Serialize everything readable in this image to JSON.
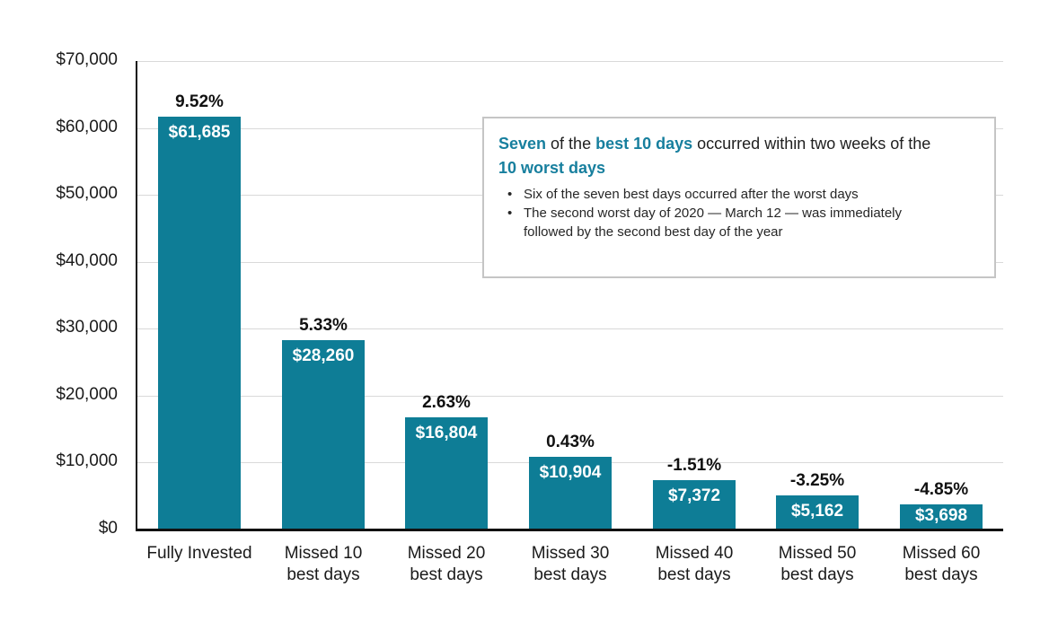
{
  "colors": {
    "bar": "#0e7d96",
    "accent_text": "#177f9e",
    "axis_text": "#1a1a1a",
    "value_label_text": "#ffffff",
    "gridline": "#d9d9d9",
    "axis_line": "#111111",
    "box_border": "#c5c5c5",
    "box_background": "#ffffff"
  },
  "chart_data": {
    "type": "bar",
    "title": "",
    "xlabel": "",
    "ylabel": "",
    "categories": [
      "Fully Invested",
      "Missed 10\nbest days",
      "Missed 20\nbest days",
      "Missed 30\nbest days",
      "Missed 40\nbest days",
      "Missed 50\nbest days",
      "Missed 60\nbest days"
    ],
    "values": [
      61685,
      28260,
      16804,
      10904,
      7372,
      5162,
      3698
    ],
    "bar_value_labels": [
      "$61,685",
      "$28,260",
      "$16,804",
      "$10,904",
      "$7,372",
      "$5,162",
      "$3,698"
    ],
    "bar_pct_labels": [
      "9.52%",
      "5.33%",
      "2.63%",
      "0.43%",
      "-1.51%",
      "-3.25%",
      "-4.85%"
    ],
    "y_ticks": [
      {
        "value": 70000,
        "label": "$70,000"
      },
      {
        "value": 60000,
        "label": "$60,000"
      },
      {
        "value": 50000,
        "label": "$50,000"
      },
      {
        "value": 40000,
        "label": "$40,000"
      },
      {
        "value": 30000,
        "label": "$30,000"
      },
      {
        "value": 20000,
        "label": "$20,000"
      },
      {
        "value": 10000,
        "label": "$10,000"
      },
      {
        "value": 0,
        "label": "$0"
      }
    ],
    "ylim": [
      0,
      70000
    ],
    "grid": "horizontal",
    "legend": "none"
  },
  "annotation": {
    "heading_lines": [
      [
        {
          "text": "Seven",
          "highlight": true
        },
        {
          "text": " of the ",
          "highlight": false
        },
        {
          "text": "best 10 days",
          "highlight": true
        },
        {
          "text": " occurred within two weeks of the",
          "highlight": false
        }
      ],
      [
        {
          "text": "10 worst days",
          "highlight": true
        }
      ]
    ],
    "bullet_glyph": "•",
    "bullets": [
      "Six of the seven best days occurred after the worst days",
      "The second worst day of 2020 — March 12 — was immediately followed by the second best day of the year"
    ]
  }
}
